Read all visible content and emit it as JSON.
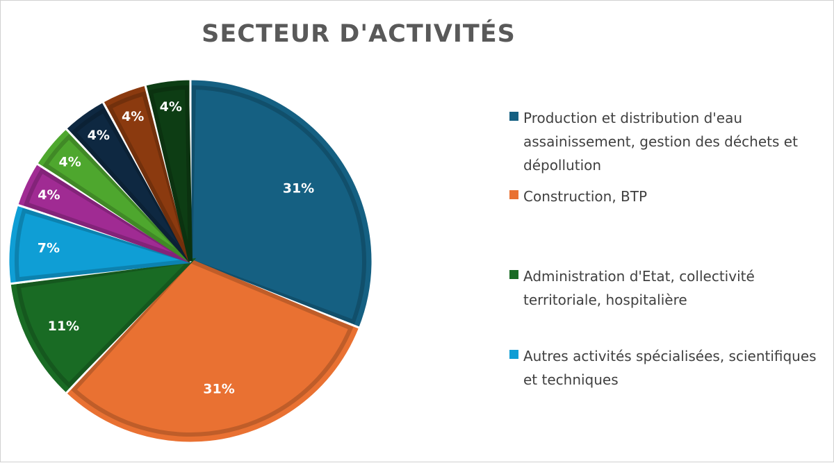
{
  "chart_data": {
    "type": "pie",
    "title": "SECTEUR D'ACTIVITÉS",
    "slices": [
      {
        "label": "Production et distribution d'eau assainissement, gestion des déchets et dépollution",
        "value": 31,
        "value_label": "31%",
        "color": "#156082"
      },
      {
        "label": "Construction, BTP",
        "value": 31,
        "value_label": "31%",
        "color": "#e97132"
      },
      {
        "label": "Administration d'Etat, collectivité territoriale, hospitalière",
        "value": 11,
        "value_label": "11%",
        "color": "#196b24"
      },
      {
        "label": "Autres activités spécialisées, scientifiques et techniques",
        "value": 7,
        "value_label": "7%",
        "color": "#0f9ed5"
      },
      {
        "label": "",
        "value": 4,
        "value_label": "4%",
        "color": "#a02b93"
      },
      {
        "label": "",
        "value": 4,
        "value_label": "4%",
        "color": "#4ea72e"
      },
      {
        "label": "",
        "value": 4,
        "value_label": "4%",
        "color": "#0e2841"
      },
      {
        "label": "",
        "value": 4,
        "value_label": "4%",
        "color": "#8b3a0f"
      },
      {
        "label": "",
        "value": 4,
        "value_label": "4%",
        "color": "#0d3d14"
      }
    ],
    "legend_placement": "right",
    "legend_entries": [
      {
        "label": "Production et distribution d'eau assainissement, gestion des déchets et dépollution",
        "color": "#156082"
      },
      {
        "label": "Construction, BTP",
        "color": "#e97132"
      },
      {
        "label": "Administration d'Etat, collectivité territoriale, hospitalière",
        "color": "#196b24"
      },
      {
        "label": "Autres activités spécialisées, scientifiques et techniques",
        "color": "#0f9ed5"
      }
    ]
  }
}
